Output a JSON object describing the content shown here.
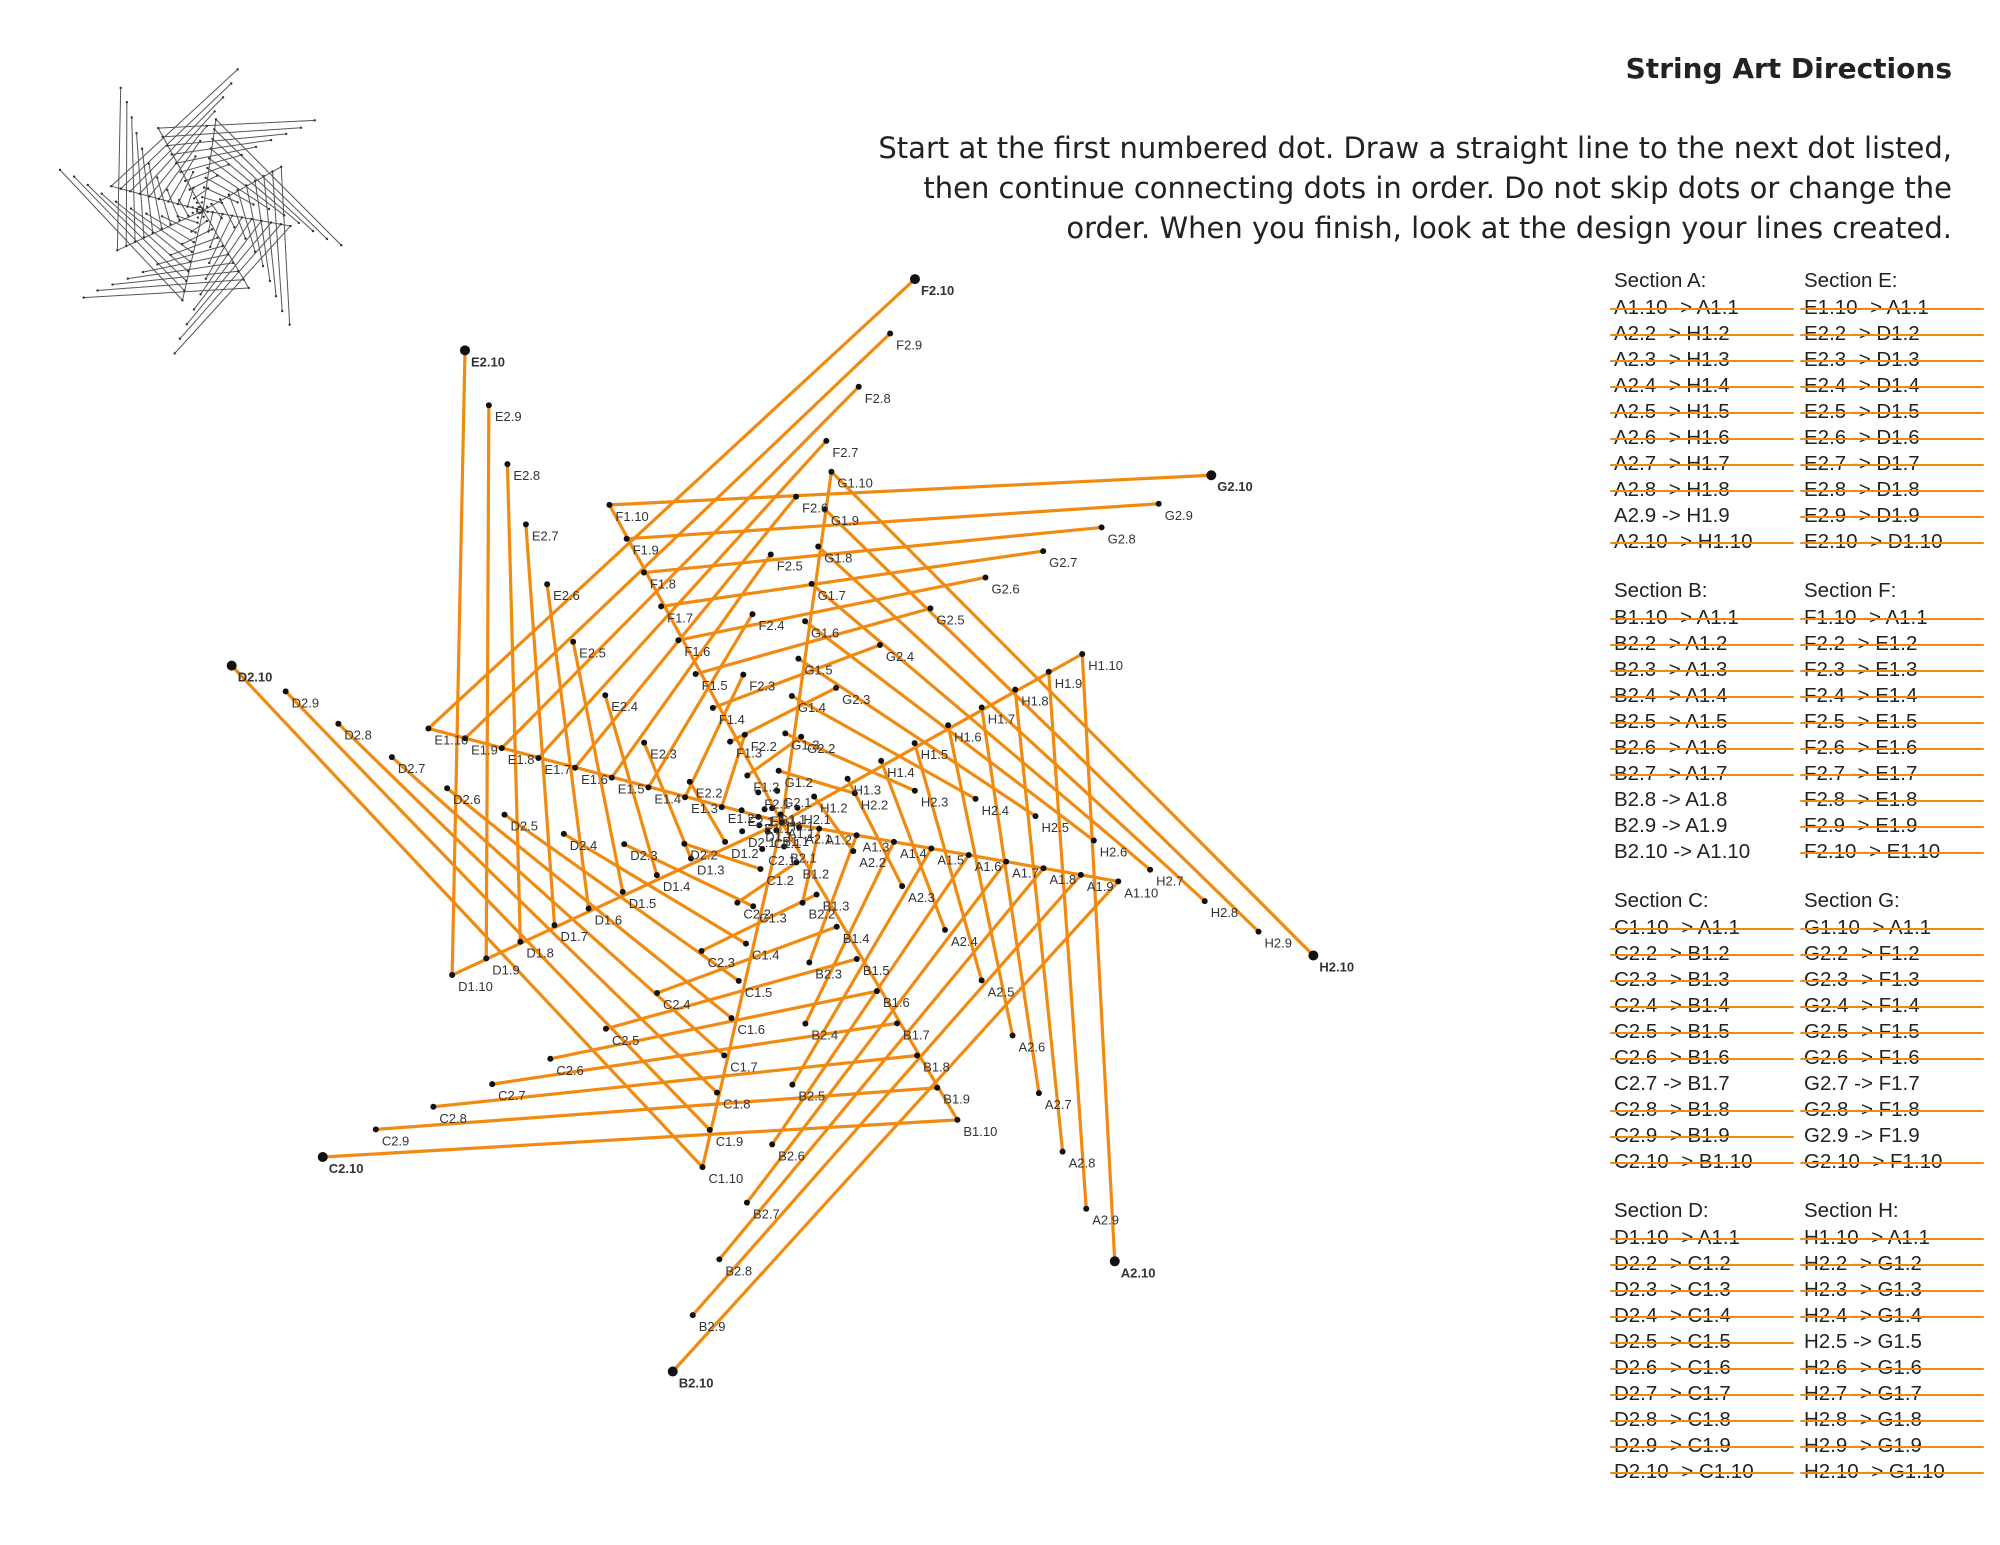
{
  "title": "String Art Directions",
  "instructions": [
    "Start at the first numbered dot. Draw a straight line to the next dot listed,",
    "then continue connecting dots in order. Do not skip dots or change the",
    "order. When you finish, look at the design your lines created."
  ],
  "colors": {
    "strand": "#f08a10",
    "dot": "#111111",
    "text": "#222222"
  },
  "sections": [
    {
      "heading": "Section A:",
      "lines": [
        "A1.10 -> A1.1",
        "A2.2 -> H1.2",
        "A2.3 -> H1.3",
        "A2.4 -> H1.4",
        "A2.5 -> H1.5",
        "A2.6 -> H1.6",
        "A2.7 -> H1.7",
        "A2.8 -> H1.8",
        "A2.9 -> H1.9",
        "A2.10 -> H1.10"
      ],
      "crossed": [
        true,
        true,
        true,
        true,
        true,
        true,
        true,
        true,
        false,
        true
      ]
    },
    {
      "heading": "Section E:",
      "lines": [
        "E1.10 -> A1.1",
        "E2.2 -> D1.2",
        "E2.3 -> D1.3",
        "E2.4 -> D1.4",
        "E2.5 -> D1.5",
        "E2.6 -> D1.6",
        "E2.7 -> D1.7",
        "E2.8 -> D1.8",
        "E2.9 -> D1.9",
        "E2.10 -> D1.10"
      ],
      "crossed": [
        true,
        true,
        true,
        true,
        true,
        true,
        true,
        true,
        true,
        true
      ]
    },
    {
      "heading": "Section B:",
      "lines": [
        "B1.10 -> A1.1",
        "B2.2 -> A1.2",
        "B2.3 -> A1.3",
        "B2.4 -> A1.4",
        "B2.5 -> A1.5",
        "B2.6 -> A1.6",
        "B2.7 -> A1.7",
        "B2.8 -> A1.8",
        "B2.9 -> A1.9",
        "B2.10 -> A1.10"
      ],
      "crossed": [
        true,
        true,
        true,
        true,
        true,
        true,
        true,
        false,
        false,
        false
      ]
    },
    {
      "heading": "Section F:",
      "lines": [
        "F1.10 -> A1.1",
        "F2.2 -> E1.2",
        "F2.3 -> E1.3",
        "F2.4 -> E1.4",
        "F2.5 -> E1.5",
        "F2.6 -> E1.6",
        "F2.7 -> E1.7",
        "F2.8 -> E1.8",
        "F2.9 -> E1.9",
        "F2.10 -> E1.10"
      ],
      "crossed": [
        true,
        true,
        true,
        true,
        true,
        true,
        true,
        true,
        true,
        true
      ]
    },
    {
      "heading": "Section C:",
      "lines": [
        "C1.10 -> A1.1",
        "C2.2 -> B1.2",
        "C2.3 -> B1.3",
        "C2.4 -> B1.4",
        "C2.5 -> B1.5",
        "C2.6 -> B1.6",
        "C2.7 -> B1.7",
        "C2.8 -> B1.8",
        "C2.9 -> B1.9",
        "C2.10 -> B1.10"
      ],
      "crossed": [
        true,
        true,
        true,
        true,
        true,
        true,
        false,
        true,
        true,
        true
      ]
    },
    {
      "heading": "Section G:",
      "lines": [
        "G1.10 -> A1.1",
        "G2.2 -> F1.2",
        "G2.3 -> F1.3",
        "G2.4 -> F1.4",
        "G2.5 -> F1.5",
        "G2.6 -> F1.6",
        "G2.7 -> F1.7",
        "G2.8 -> F1.8",
        "G2.9 -> F1.9",
        "G2.10 -> F1.10"
      ],
      "crossed": [
        true,
        true,
        true,
        true,
        true,
        true,
        false,
        true,
        false,
        true
      ]
    },
    {
      "heading": "Section D:",
      "lines": [
        "D1.10 -> A1.1",
        "D2.2 -> C1.2",
        "D2.3 -> C1.3",
        "D2.4 -> C1.4",
        "D2.5 -> C1.5",
        "D2.6 -> C1.6",
        "D2.7 -> C1.7",
        "D2.8 -> C1.8",
        "D2.9 -> C1.9",
        "D2.10 -> C1.10"
      ],
      "crossed": [
        true,
        true,
        true,
        true,
        true,
        true,
        true,
        true,
        true,
        true
      ]
    },
    {
      "heading": "Section H:",
      "lines": [
        "H1.10 -> A1.1",
        "H2.2 -> G1.2",
        "H2.3 -> G1.3",
        "H2.4 -> G1.4",
        "H2.5 -> G1.5",
        "H2.6 -> G1.6",
        "H2.7 -> G1.7",
        "H2.8 -> G1.8",
        "H2.9 -> G1.9",
        "H2.10 -> G1.10"
      ],
      "crossed": [
        true,
        true,
        true,
        true,
        false,
        true,
        true,
        true,
        true,
        true
      ]
    }
  ],
  "arms": [
    "A",
    "B",
    "C",
    "D",
    "E",
    "F",
    "G",
    "H"
  ],
  "steps": 10
}
